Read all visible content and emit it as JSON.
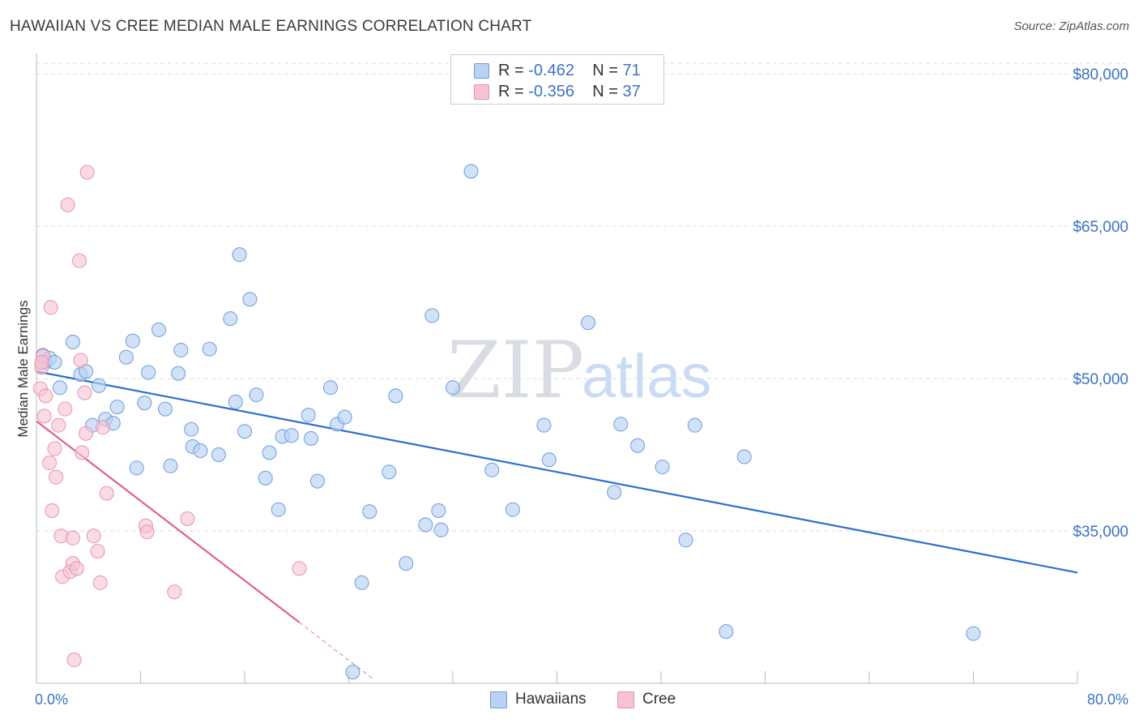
{
  "header": {
    "title": "HAWAIIAN VS CREE MEDIAN MALE EARNINGS CORRELATION CHART",
    "source": "Source: ZipAtlas.com"
  },
  "colors": {
    "hawaiians_fill": "#b9d2f3",
    "hawaiians_stroke": "#6b9be0",
    "hawaiians_line": "#2b6fcf",
    "cree_fill": "#f7c3d3",
    "cree_stroke": "#e891ad",
    "cree_line": "#e0608c",
    "axis_text": "#3b73c4",
    "grid": "#dddddd"
  },
  "legend": {
    "rows": [
      {
        "r_label": "R = ",
        "r_value": "-0.462",
        "n_label": "N = ",
        "n_value": "71"
      },
      {
        "r_label": "R = ",
        "r_value": "-0.356",
        "n_label": "N = ",
        "n_value": "37"
      }
    ]
  },
  "bottom_legend": {
    "hawaiians": "Hawaiians",
    "cree": "Cree"
  },
  "watermark": {
    "zip": "ZIP",
    "atlas": "atlas"
  },
  "chart_data": {
    "type": "scatter",
    "title": "HAWAIIAN VS CREE MEDIAN MALE EARNINGS CORRELATION CHART",
    "xlabel": "",
    "ylabel": "Median Male Earnings",
    "xlim": [
      0,
      80
    ],
    "ylim": [
      20000,
      82000
    ],
    "x_tick_labels": [
      "0.0%",
      "80.0%"
    ],
    "y_ticks": [
      35000,
      50000,
      65000,
      80000
    ],
    "y_tick_labels": [
      "$35,000",
      "$50,000",
      "$65,000",
      "$80,000"
    ],
    "legend_position": "top-center",
    "grid": true,
    "series": [
      {
        "name": "Hawaiians",
        "R": -0.462,
        "N": 71,
        "trend": {
          "x": [
            0,
            80
          ],
          "y": [
            50700,
            30900
          ]
        },
        "points": [
          [
            0.5,
            52300
          ],
          [
            0.7,
            51600
          ],
          [
            1.0,
            52000
          ],
          [
            1.4,
            51600
          ],
          [
            1.8,
            49100
          ],
          [
            2.8,
            53600
          ],
          [
            3.4,
            50400
          ],
          [
            3.8,
            50700
          ],
          [
            4.3,
            45400
          ],
          [
            4.8,
            49300
          ],
          [
            5.3,
            46000
          ],
          [
            5.9,
            45600
          ],
          [
            6.2,
            47200
          ],
          [
            6.9,
            52100
          ],
          [
            7.4,
            53700
          ],
          [
            7.7,
            41200
          ],
          [
            8.3,
            47600
          ],
          [
            8.6,
            50600
          ],
          [
            9.4,
            54800
          ],
          [
            9.9,
            47000
          ],
          [
            10.3,
            41400
          ],
          [
            10.9,
            50500
          ],
          [
            11.1,
            52800
          ],
          [
            11.9,
            45000
          ],
          [
            12.0,
            43300
          ],
          [
            12.6,
            42900
          ],
          [
            13.3,
            52900
          ],
          [
            14.0,
            42500
          ],
          [
            14.9,
            55900
          ],
          [
            15.3,
            47700
          ],
          [
            15.6,
            62200
          ],
          [
            16.0,
            44800
          ],
          [
            16.4,
            57800
          ],
          [
            16.9,
            48400
          ],
          [
            17.6,
            40200
          ],
          [
            17.9,
            42700
          ],
          [
            18.6,
            37100
          ],
          [
            18.9,
            44300
          ],
          [
            19.6,
            44400
          ],
          [
            20.9,
            46400
          ],
          [
            21.1,
            44100
          ],
          [
            21.6,
            39900
          ],
          [
            22.6,
            49100
          ],
          [
            23.1,
            45500
          ],
          [
            23.7,
            46200
          ],
          [
            24.3,
            21100
          ],
          [
            25.0,
            29900
          ],
          [
            25.6,
            36900
          ],
          [
            27.1,
            40800
          ],
          [
            27.6,
            48300
          ],
          [
            28.4,
            31800
          ],
          [
            29.9,
            35600
          ],
          [
            30.4,
            56200
          ],
          [
            30.9,
            37000
          ],
          [
            31.1,
            35100
          ],
          [
            32.0,
            49100
          ],
          [
            33.4,
            70400
          ],
          [
            35.0,
            41000
          ],
          [
            36.6,
            37100
          ],
          [
            39.0,
            45400
          ],
          [
            39.4,
            42000
          ],
          [
            42.4,
            55500
          ],
          [
            44.4,
            38800
          ],
          [
            44.9,
            45500
          ],
          [
            46.2,
            43400
          ],
          [
            48.1,
            41300
          ],
          [
            49.9,
            34100
          ],
          [
            50.6,
            45400
          ],
          [
            53.0,
            25100
          ],
          [
            54.4,
            42300
          ],
          [
            72.0,
            24900
          ]
        ]
      },
      {
        "name": "Cree",
        "R": -0.356,
        "N": 37,
        "trend": {
          "x": [
            0,
            20.2
          ],
          "y": [
            45800,
            26000
          ]
        },
        "trend_extension": {
          "x": [
            20.2,
            26.0
          ],
          "y": [
            26000,
            20300
          ]
        },
        "points": [
          [
            0.3,
            49000
          ],
          [
            0.4,
            51100
          ],
          [
            0.5,
            52200
          ],
          [
            0.6,
            46300
          ],
          [
            0.7,
            48300
          ],
          [
            1.0,
            41700
          ],
          [
            1.1,
            57000
          ],
          [
            1.2,
            37000
          ],
          [
            1.4,
            43100
          ],
          [
            1.5,
            40300
          ],
          [
            1.7,
            45400
          ],
          [
            1.9,
            34500
          ],
          [
            2.0,
            30500
          ],
          [
            2.2,
            47000
          ],
          [
            2.4,
            67100
          ],
          [
            2.6,
            31000
          ],
          [
            2.8,
            31800
          ],
          [
            2.8,
            34300
          ],
          [
            2.9,
            22300
          ],
          [
            3.1,
            31300
          ],
          [
            3.3,
            61600
          ],
          [
            3.4,
            51800
          ],
          [
            3.5,
            42700
          ],
          [
            3.7,
            48600
          ],
          [
            3.8,
            44600
          ],
          [
            3.9,
            70300
          ],
          [
            4.4,
            34500
          ],
          [
            4.7,
            33000
          ],
          [
            4.9,
            29900
          ],
          [
            5.1,
            45200
          ],
          [
            5.4,
            38700
          ],
          [
            8.4,
            35500
          ],
          [
            8.5,
            34900
          ],
          [
            10.6,
            29000
          ],
          [
            11.6,
            36200
          ],
          [
            20.2,
            31300
          ],
          [
            0.4,
            51600
          ]
        ]
      }
    ]
  }
}
